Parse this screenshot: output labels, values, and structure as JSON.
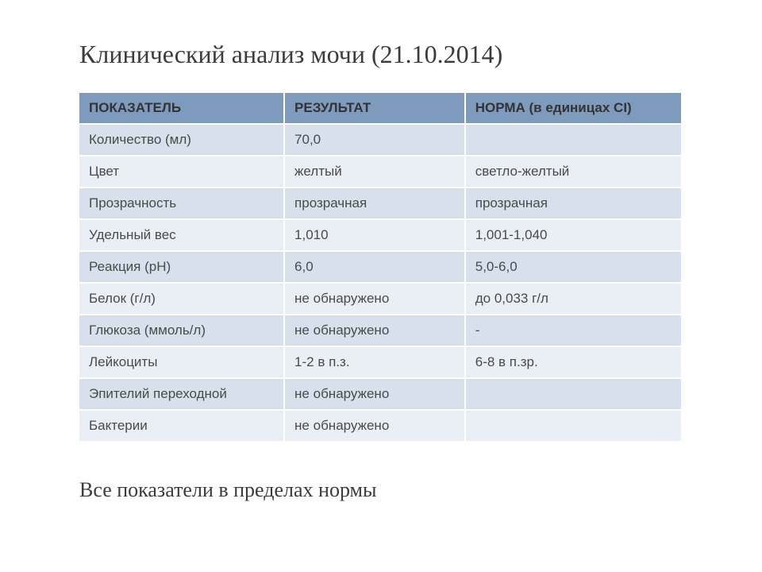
{
  "title": "Клинический анализ мочи (21.10.2014)",
  "table": {
    "type": "table",
    "header_bg": "#7e9abd",
    "row_bg_even": "#d7e0ec",
    "row_bg_odd": "#eaeef5",
    "border_color": "#ffffff",
    "header_text_color": "#333333",
    "cell_text_color": "#4a4a4a",
    "columns": [
      "ПОКАЗАТЕЛЬ",
      "РЕЗУЛЬТАТ",
      "НОРМА (в единицах СІ)"
    ],
    "rows": [
      [
        "Количество (мл)",
        "70,0",
        ""
      ],
      [
        "Цвет",
        "желтый",
        "светло-желтый"
      ],
      [
        "Прозрачность",
        "прозрачная",
        "прозрачная"
      ],
      [
        "Удельный вес",
        "1,010",
        "1,001-1,040"
      ],
      [
        "Реакция (рН)",
        "6,0",
        "5,0-6,0"
      ],
      [
        "Белок (г/л)",
        "не обнаружено",
        "до 0,033 г/л"
      ],
      [
        "Глюкоза (ммоль/л)",
        "не обнаружено",
        "-"
      ],
      [
        "Лейкоциты",
        "1-2 в п.з.",
        "6-8 в п.зр."
      ],
      [
        "Эпителий переходной",
        "не обнаружено",
        ""
      ],
      [
        "Бактерии",
        "не обнаружено",
        ""
      ]
    ]
  },
  "summary": "Все показатели в пределах нормы"
}
